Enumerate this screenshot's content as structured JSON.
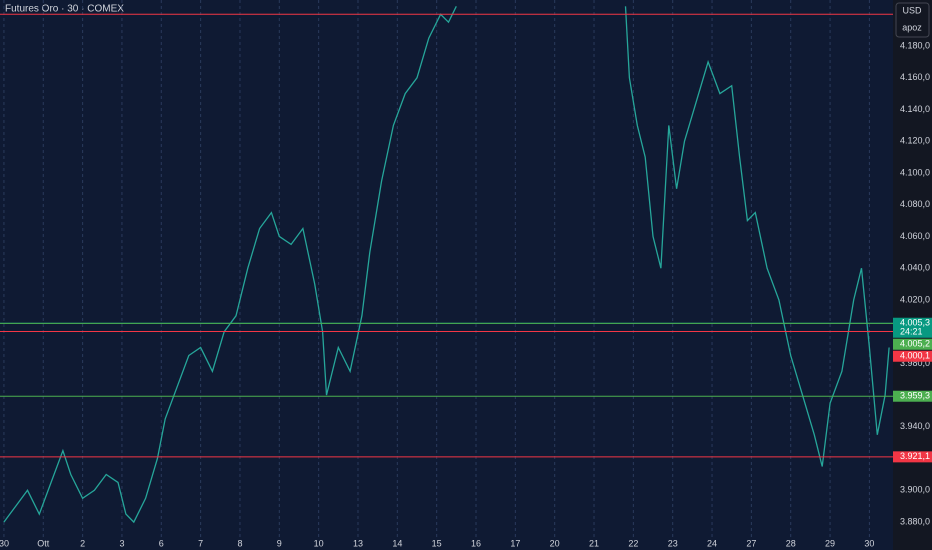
{
  "chart_data": {
    "type": "line",
    "title": "Futures Oro · 30 · COMEX",
    "currency": "USD",
    "account": "apoz",
    "xlim": [
      -0.1,
      22.6
    ],
    "ylim": [
      3862.4,
      4209
    ],
    "xticks": [
      {
        "value": 0,
        "label": "30"
      },
      {
        "value": 1,
        "label": "Ott"
      },
      {
        "value": 2,
        "label": "2"
      },
      {
        "value": 3,
        "label": "3"
      },
      {
        "value": 4,
        "label": "6"
      },
      {
        "value": 5,
        "label": "7"
      },
      {
        "value": 6,
        "label": "8"
      },
      {
        "value": 7,
        "label": "9"
      },
      {
        "value": 8,
        "label": "10"
      },
      {
        "value": 9,
        "label": "13"
      },
      {
        "value": 10,
        "label": "14"
      },
      {
        "value": 11,
        "label": "15"
      },
      {
        "value": 12,
        "label": "16"
      },
      {
        "value": 13,
        "label": "17"
      },
      {
        "value": 14,
        "label": "20"
      },
      {
        "value": 15,
        "label": "21"
      },
      {
        "value": 16,
        "label": "22"
      },
      {
        "value": 17,
        "label": "23"
      },
      {
        "value": 18,
        "label": "24"
      },
      {
        "value": 19,
        "label": "27"
      },
      {
        "value": 20,
        "label": "28"
      },
      {
        "value": 21,
        "label": "29"
      },
      {
        "value": 22,
        "label": "30"
      }
    ],
    "yticks": [
      {
        "value": 4180,
        "label": "4.180,0"
      },
      {
        "value": 4160,
        "label": "4.160,0"
      },
      {
        "value": 4140,
        "label": "4.140,0"
      },
      {
        "value": 4120,
        "label": "4.120,0"
      },
      {
        "value": 4100,
        "label": "4.100,0"
      },
      {
        "value": 4080,
        "label": "4.080,0"
      },
      {
        "value": 4060,
        "label": "4.060,0"
      },
      {
        "value": 4040,
        "label": "4.040,0"
      },
      {
        "value": 4020,
        "label": "4.020,0"
      },
      {
        "value": 3980,
        "label": "3.980,0"
      },
      {
        "value": 3940,
        "label": "3.940,0"
      },
      {
        "value": 3900,
        "label": "3.900,0"
      },
      {
        "value": 3880,
        "label": "3.880,0"
      }
    ],
    "grid": true,
    "levels": [
      {
        "value": 4200,
        "color": "#f23645"
      },
      {
        "value": 4005.3,
        "label": "4.005,3",
        "color": "#089981",
        "countdown": "24:21"
      },
      {
        "value": 4005.2,
        "label": "4.005,2",
        "color": "#4caf50"
      },
      {
        "value": 4000.1,
        "label": "4.000,1",
        "color": "#f23645"
      },
      {
        "value": 3959.3,
        "label": "3.959,3",
        "color": "#4caf50"
      },
      {
        "value": 3921.1,
        "label": "3.921,1",
        "color": "#f23645"
      }
    ],
    "series": [
      {
        "name": "Oro",
        "color": "#26a69a",
        "x": [
          0,
          0.3,
          0.6,
          0.9,
          1.2,
          1.5,
          1.7,
          2,
          2.3,
          2.6,
          2.9,
          3.1,
          3.3,
          3.6,
          3.9,
          4.1,
          4.4,
          4.7,
          5,
          5.3,
          5.6,
          5.9,
          6.2,
          6.5,
          6.8,
          7.0,
          7.3,
          7.6,
          7.9,
          8.1,
          8.2,
          8.5,
          8.8,
          9.1,
          9.3,
          9.6,
          9.9,
          10.2,
          10.5,
          10.8,
          11.1,
          11.3,
          11.5,
          11.6,
          15.8,
          15.9,
          16.1,
          16.3,
          16.5,
          16.7,
          16.9,
          17.1,
          17.3,
          17.6,
          17.9,
          18.2,
          18.5,
          18.7,
          18.9,
          19.1,
          19.4,
          19.7,
          20,
          20.3,
          20.6,
          20.8,
          21.0,
          21.3,
          21.6,
          21.8,
          22.0,
          22.2,
          22.4,
          22.5
        ],
        "values": [
          3880,
          3890,
          3900,
          3885,
          3905,
          3925,
          3910,
          3895,
          3900,
          3910,
          3905,
          3885,
          3880,
          3895,
          3920,
          3945,
          3965,
          3985,
          3990,
          3975,
          4000,
          4010,
          4040,
          4065,
          4075,
          4060,
          4055,
          4065,
          4030,
          4000,
          3960,
          3990,
          3975,
          4010,
          4050,
          4095,
          4130,
          4150,
          4160,
          4185,
          4200,
          4195,
          4205,
          null,
          4205,
          4160,
          4130,
          4110,
          4060,
          4040,
          4130,
          4090,
          4120,
          4145,
          4170,
          4150,
          4155,
          4110,
          4070,
          4075,
          4040,
          4020,
          3985,
          3960,
          3935,
          3915,
          3955,
          3975,
          4020,
          4040,
          3990,
          3935,
          3960,
          3990
        ]
      }
    ]
  }
}
